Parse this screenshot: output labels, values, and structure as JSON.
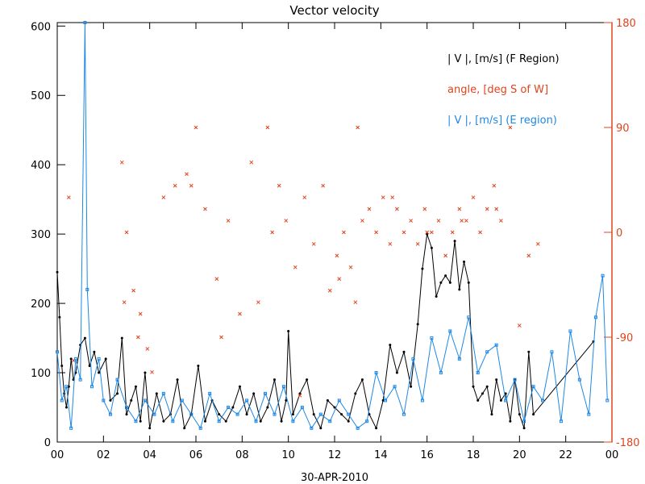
{
  "chart_data": {
    "type": "line",
    "title": "Vector velocity",
    "xlabel": "30-APR-2010",
    "x_ticks": [
      "00",
      "02",
      "04",
      "06",
      "08",
      "10",
      "12",
      "14",
      "16",
      "18",
      "20",
      "22",
      "00"
    ],
    "xlim": [
      0,
      24
    ],
    "y_left": {
      "label": "",
      "ylim": [
        0,
        605
      ],
      "ticks": [
        "0",
        "100",
        "200",
        "300",
        "400",
        "500",
        "600"
      ]
    },
    "y_right": {
      "label": "",
      "ylim": [
        -180,
        180
      ],
      "ticks": [
        "-180",
        "-90",
        "0",
        "90",
        "180"
      ]
    },
    "colors": {
      "axis": "#000000",
      "f_region": "#000000",
      "angle": "#e0441c",
      "e_region": "#1e88e5"
    },
    "legend": [
      {
        "text": "| V |, [m/s] (F Region)",
        "color": "#000000"
      },
      {
        "text": "angle, [deg S of W]",
        "color": "#e0441c"
      },
      {
        "text": "| V |, [m/s] (E region)",
        "color": "#1e88e5"
      }
    ],
    "series": [
      {
        "name": "| V |, [m/s] (F Region)",
        "style": "line+dots",
        "axis": "left",
        "x": [
          0.0,
          0.1,
          0.2,
          0.3,
          0.4,
          0.5,
          0.6,
          0.7,
          0.8,
          1.0,
          1.2,
          1.4,
          1.6,
          1.8,
          2.1,
          2.3,
          2.6,
          2.8,
          3.0,
          3.2,
          3.4,
          3.6,
          3.8,
          4.0,
          4.3,
          4.6,
          4.9,
          5.2,
          5.5,
          5.8,
          6.1,
          6.4,
          6.7,
          7.0,
          7.3,
          7.6,
          7.9,
          8.2,
          8.5,
          8.8,
          9.1,
          9.4,
          9.7,
          9.9,
          10.0,
          10.2,
          10.5,
          10.8,
          11.1,
          11.4,
          11.7,
          12.0,
          12.3,
          12.6,
          12.9,
          13.2,
          13.5,
          13.8,
          14.1,
          14.4,
          14.7,
          15.0,
          15.3,
          15.6,
          15.8,
          16.0,
          16.2,
          16.4,
          16.6,
          16.8,
          17.0,
          17.2,
          17.4,
          17.6,
          17.8,
          18.0,
          18.2,
          18.4,
          18.6,
          18.8,
          19.0,
          19.2,
          19.4,
          19.6,
          19.8,
          20.0,
          20.2,
          20.4,
          20.6,
          23.2
        ],
        "y": [
          245,
          180,
          110,
          70,
          50,
          80,
          120,
          90,
          100,
          140,
          150,
          110,
          130,
          100,
          120,
          60,
          70,
          150,
          40,
          60,
          80,
          30,
          100,
          20,
          70,
          30,
          40,
          90,
          20,
          40,
          110,
          30,
          60,
          40,
          30,
          50,
          80,
          40,
          70,
          30,
          50,
          90,
          30,
          60,
          160,
          40,
          70,
          90,
          40,
          20,
          60,
          50,
          40,
          30,
          70,
          90,
          40,
          20,
          60,
          140,
          100,
          130,
          80,
          170,
          250,
          300,
          280,
          210,
          230,
          240,
          230,
          290,
          220,
          260,
          230,
          80,
          60,
          70,
          80,
          40,
          90,
          60,
          70,
          30,
          90,
          40,
          20,
          130,
          40,
          145
        ]
      },
      {
        "name": "angle, [deg S of W]",
        "style": "x-markers",
        "axis": "right",
        "x": [
          0.5,
          0.7,
          2.8,
          3.0,
          3.3,
          3.6,
          3.9,
          4.6,
          5.1,
          5.6,
          6.0,
          6.4,
          6.9,
          7.4,
          7.9,
          8.4,
          8.7,
          9.1,
          9.6,
          9.9,
          10.3,
          10.7,
          11.1,
          11.5,
          11.8,
          12.1,
          12.4,
          12.7,
          12.9,
          13.2,
          13.5,
          13.8,
          14.1,
          14.4,
          14.7,
          15.0,
          15.3,
          15.6,
          15.9,
          16.2,
          16.5,
          16.8,
          17.1,
          17.4,
          17.7,
          18.0,
          18.3,
          18.6,
          18.9,
          19.2,
          19.6,
          20.0,
          20.4,
          20.8,
          2.9,
          3.5,
          4.1,
          5.8,
          7.1,
          9.3,
          10.5,
          12.2,
          13.0,
          14.5,
          16.0,
          17.5,
          19.0
        ],
        "y": [
          30,
          -110,
          60,
          0,
          -50,
          -70,
          -100,
          30,
          40,
          50,
          90,
          20,
          -40,
          10,
          -70,
          60,
          -60,
          90,
          40,
          10,
          -30,
          30,
          -10,
          40,
          -50,
          -20,
          0,
          -30,
          -60,
          10,
          20,
          0,
          30,
          -10,
          20,
          0,
          10,
          -10,
          20,
          0,
          10,
          -20,
          0,
          20,
          10,
          30,
          0,
          20,
          40,
          10,
          90,
          -80,
          -20,
          -10,
          -60,
          -90,
          -120,
          40,
          -90,
          0,
          -140,
          -40,
          90,
          30,
          0,
          10,
          20
        ]
      },
      {
        "name": "| V |, [m/s] (E region)",
        "style": "line+squares",
        "axis": "left",
        "x": [
          0.0,
          0.2,
          0.4,
          0.6,
          0.8,
          1.0,
          1.2,
          1.3,
          1.5,
          1.8,
          2.0,
          2.3,
          2.6,
          3.0,
          3.4,
          3.8,
          4.2,
          4.6,
          5.0,
          5.4,
          5.8,
          6.2,
          6.6,
          7.0,
          7.4,
          7.8,
          8.2,
          8.6,
          9.0,
          9.4,
          9.8,
          10.2,
          10.6,
          11.0,
          11.4,
          11.8,
          12.2,
          12.6,
          13.0,
          13.4,
          13.8,
          14.2,
          14.6,
          15.0,
          15.4,
          15.8,
          16.2,
          16.6,
          17.0,
          17.4,
          17.8,
          18.2,
          18.6,
          19.0,
          19.4,
          19.8,
          20.2,
          20.6,
          21.0,
          21.4,
          21.8,
          22.2,
          22.6,
          23.0,
          23.3,
          23.6,
          23.8
        ],
        "y": [
          130,
          60,
          80,
          20,
          120,
          90,
          605,
          220,
          80,
          120,
          60,
          40,
          90,
          50,
          30,
          60,
          40,
          70,
          30,
          60,
          40,
          20,
          70,
          30,
          50,
          40,
          60,
          30,
          70,
          40,
          80,
          30,
          50,
          20,
          40,
          30,
          60,
          40,
          20,
          30,
          100,
          60,
          80,
          40,
          120,
          60,
          150,
          100,
          160,
          120,
          180,
          100,
          130,
          140,
          60,
          90,
          30,
          80,
          60,
          130,
          30,
          160,
          90,
          40,
          180,
          240,
          60
        ]
      }
    ]
  }
}
